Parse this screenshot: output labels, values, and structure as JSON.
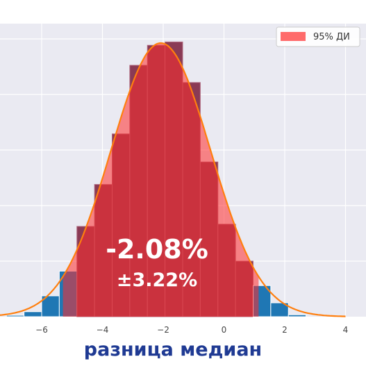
{
  "chart_data": {
    "type": "bar",
    "xlabel": "разница медиан",
    "xticks": [
      "−6",
      "−4",
      "−2",
      "0",
      "2",
      "4"
    ],
    "xtick_values": [
      -6,
      -4,
      -2,
      0,
      2,
      4
    ],
    "xlim": [
      -7.4,
      4.4
    ],
    "ylim": [
      0,
      1.0
    ],
    "grid": true,
    "legend": {
      "label": "95% ДИ",
      "placement": "top-right"
    },
    "annotation": {
      "value": "-2.08%",
      "ci": "±3.22%"
    },
    "bin_width": 0.58,
    "bins": [
      {
        "x": -7.16,
        "count": 0.005
      },
      {
        "x": -6.58,
        "count": 0.018
      },
      {
        "x": -6.0,
        "count": 0.075
      },
      {
        "x": -5.42,
        "count": 0.164
      },
      {
        "x": -4.84,
        "count": 0.325
      },
      {
        "x": -4.26,
        "count": 0.476
      },
      {
        "x": -3.68,
        "count": 0.658
      },
      {
        "x": -3.1,
        "count": 0.905
      },
      {
        "x": -2.52,
        "count": 0.977
      },
      {
        "x": -1.94,
        "count": 0.989
      },
      {
        "x": -1.36,
        "count": 0.843
      },
      {
        "x": -0.78,
        "count": 0.557
      },
      {
        "x": -0.2,
        "count": 0.333
      },
      {
        "x": 0.38,
        "count": 0.2
      },
      {
        "x": 0.96,
        "count": 0.112
      },
      {
        "x": 1.54,
        "count": 0.05
      },
      {
        "x": 2.12,
        "count": 0.007
      }
    ],
    "ci_range": [
      -5.3,
      1.14
    ],
    "normal_fit": {
      "mean": -2.08,
      "sd": 1.643,
      "peak": 0.985
    },
    "colors": {
      "bars": "#1f77b4",
      "ci_fill": "#ff2b2b",
      "ci_bar_overlay": "#8a3a55",
      "curve": "#ff7f0e",
      "background": "#eaeaf2"
    }
  }
}
